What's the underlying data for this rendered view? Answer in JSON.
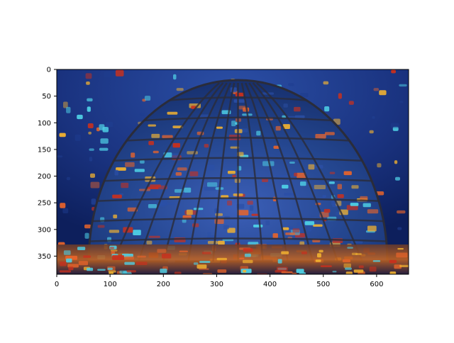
{
  "chart_data": {
    "type": "image",
    "title": "",
    "xlabel": "",
    "ylabel": "",
    "xlim": [
      0,
      660
    ],
    "ylim": [
      384,
      0
    ],
    "x_ticks": [
      0,
      100,
      200,
      300,
      400,
      500,
      600
    ],
    "y_ticks": [
      0,
      50,
      100,
      150,
      200,
      250,
      300,
      350
    ],
    "image": {
      "description_key": "stylized-glass-dome",
      "colors": {
        "sky_dark": "#0d1f5c",
        "sky_mid": "#1f3d8f",
        "dome_blue": "#2b4fa6",
        "dome_frame": "#2a2c3a",
        "light_gold": "#f2b230",
        "light_orange": "#e8642a",
        "light_red": "#c9301d",
        "light_cyan": "#4fd1e6",
        "ground": "#2a1f3a"
      }
    }
  }
}
